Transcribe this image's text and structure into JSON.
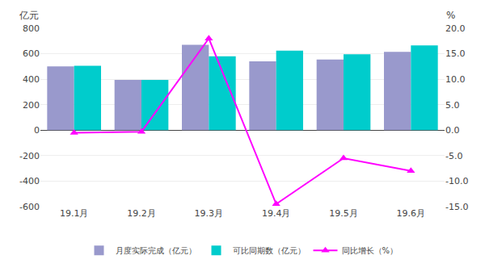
{
  "chart_data": {
    "type": "bar",
    "categories": [
      "19.1月",
      "19.2月",
      "19.3月",
      "19.4月",
      "19.5月",
      "19.6月"
    ],
    "series": [
      {
        "name": "月度实际完成（亿元）",
        "type": "bar",
        "color": "#9999cc",
        "values": [
          500,
          395,
          670,
          540,
          555,
          615
        ]
      },
      {
        "name": "可比同期数（亿元）",
        "type": "bar",
        "color": "#00cccc",
        "values": [
          505,
          395,
          580,
          625,
          595,
          665
        ]
      },
      {
        "name": "同比增长（%）",
        "type": "line",
        "color": "#ff00ff",
        "marker": "triangle-up",
        "axis": "y2",
        "values": [
          -0.5,
          -0.3,
          18.0,
          -14.5,
          -5.5,
          -8.0
        ]
      }
    ],
    "ylabel": "亿元",
    "y2label": "%",
    "ylim": [
      -600,
      800
    ],
    "yticks": [
      -600,
      -400,
      -200,
      0,
      200,
      400,
      600,
      800
    ],
    "y2lim": [
      -15.0,
      20.0
    ],
    "y2ticks": [
      {
        "value": -15,
        "label": "-15.0"
      },
      {
        "value": -10,
        "label": "-10.0"
      },
      {
        "value": -5,
        "label": "-5.0"
      },
      {
        "value": 0,
        "label": "0.0"
      },
      {
        "value": 5,
        "label": "5.0"
      },
      {
        "value": 10,
        "label": "10.0"
      },
      {
        "value": 15,
        "label": "15.0"
      },
      {
        "value": 20,
        "label": "20.0"
      }
    ],
    "grid": true,
    "legend": "bottom"
  }
}
